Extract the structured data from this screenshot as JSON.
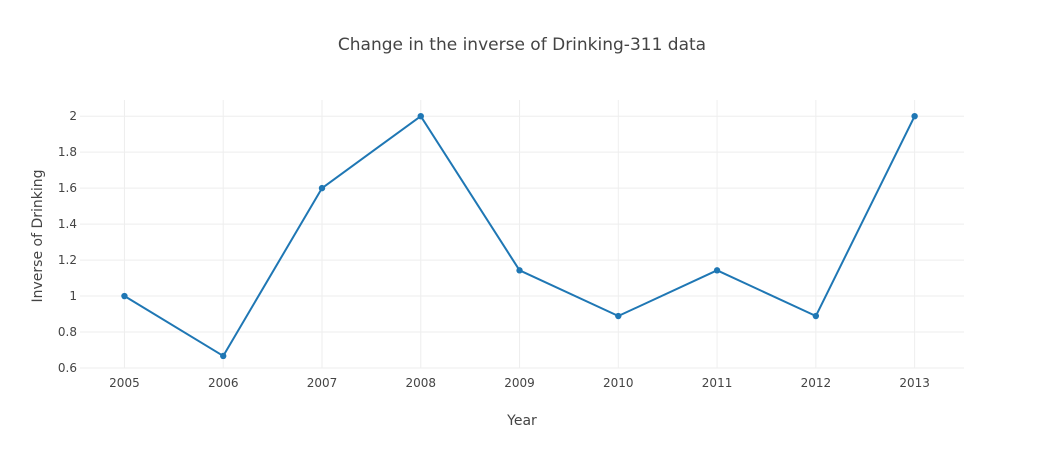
{
  "chart_data": {
    "type": "line",
    "title": "Change in the inverse of Drinking-311 data",
    "xlabel": "Year",
    "ylabel": "Inverse of Drinking",
    "x": [
      "2005",
      "2006",
      "2007",
      "2008",
      "2009",
      "2010",
      "2011",
      "2012",
      "2013"
    ],
    "series": [
      {
        "values": [
          1.0,
          0.667,
          1.6,
          2.0,
          1.143,
          0.889,
          1.143,
          0.889,
          2.0
        ],
        "color": "#1f77b4"
      }
    ],
    "xlim": [
      2004.55,
      2013.5
    ],
    "ylim": [
      0.6,
      2.09
    ],
    "yticks": [
      0.6,
      0.8,
      1,
      1.2,
      1.4,
      1.6,
      1.8,
      2
    ],
    "ytick_labels": [
      "0.6",
      "0.8",
      "1",
      "1.2",
      "1.4",
      "1.6",
      "1.8",
      "2"
    ],
    "grid": true,
    "markers": true
  }
}
